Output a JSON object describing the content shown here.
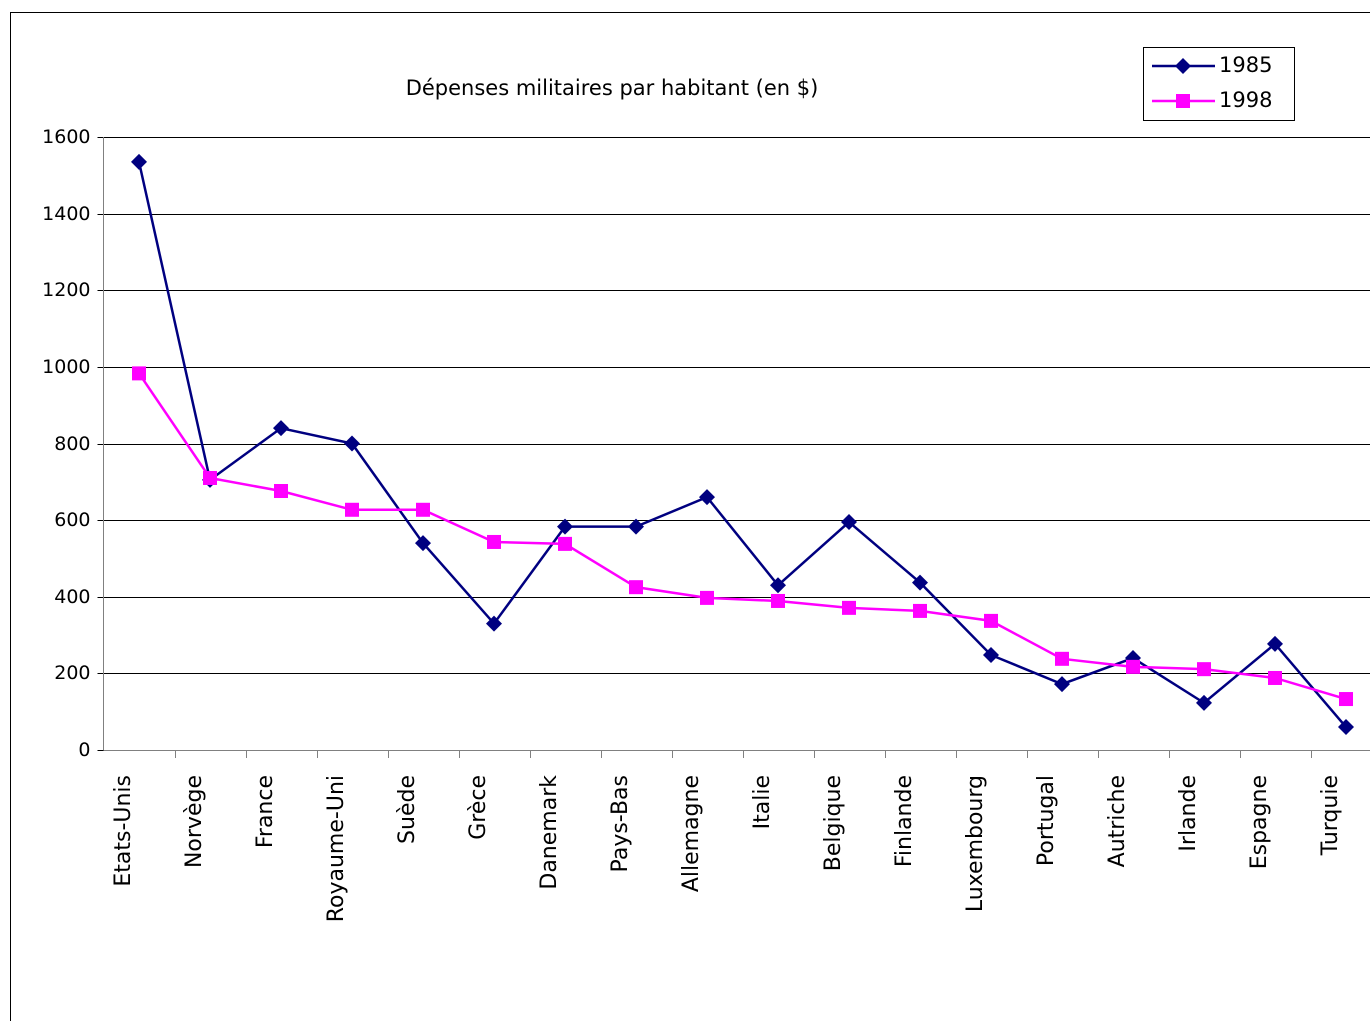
{
  "chart_data": {
    "type": "line",
    "title": "Dépenses militaires par habitant (en $)",
    "categories": [
      "Etats-Unis",
      "Norvège",
      "France",
      "Royaume-Uni",
      "Suède",
      "Grèce",
      "Danemark",
      "Pays-Bas",
      "Allemagne",
      "Italie",
      "Belgique",
      "Finlande",
      "Luxembourg",
      "Portugal",
      "Autriche",
      "Irlande",
      "Espagne",
      "Turquie"
    ],
    "series": [
      {
        "name": "1985",
        "color": "#000080",
        "marker": "diamond",
        "values": [
          1535,
          705,
          840,
          800,
          540,
          330,
          583,
          583,
          660,
          430,
          595,
          437,
          248,
          172,
          240,
          123,
          277,
          60
        ]
      },
      {
        "name": "1998",
        "color": "#ff00ff",
        "marker": "square",
        "values": [
          983,
          710,
          676,
          627,
          627,
          543,
          538,
          425,
          397,
          389,
          371,
          363,
          337,
          238,
          217,
          211,
          188,
          133
        ]
      }
    ],
    "ylim": [
      0,
      1600
    ],
    "yticks": [
      0,
      200,
      400,
      600,
      800,
      1000,
      1200,
      1400,
      1600
    ],
    "grid": true,
    "legend": "top-right"
  }
}
